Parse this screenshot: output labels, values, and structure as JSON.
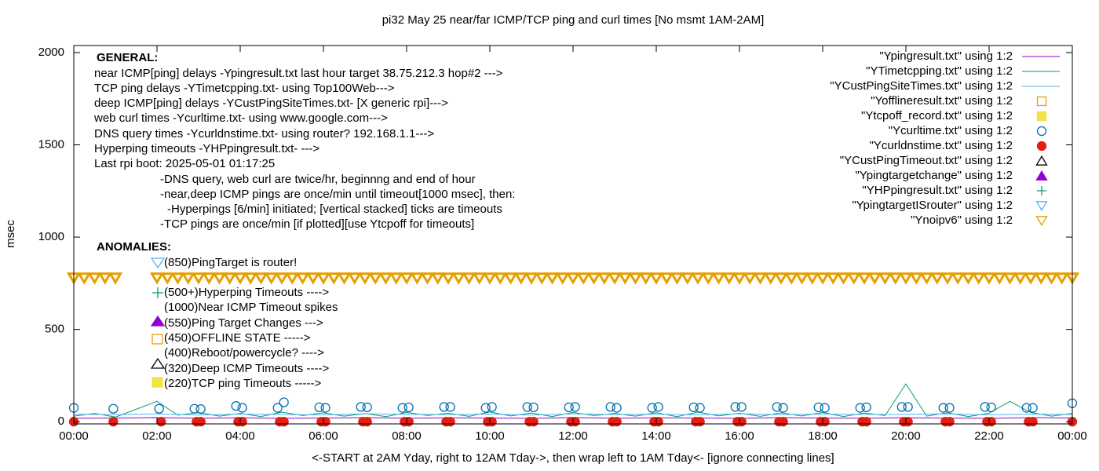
{
  "chart_data": {
    "type": "scatter",
    "title": "pi32 May 25  near/far ICMP/TCP ping and curl times [No msmt 1AM-2AM]",
    "xlabel": "<-START at 2AM Yday, right to 12AM Tday->, then wrap left to 1AM Tday<- [ignore connecting lines]",
    "ylabel": "msec",
    "xlim": [
      0,
      24
    ],
    "ylim": [
      -12,
      2038
    ],
    "yticks": [
      0,
      500,
      1000,
      1500,
      2000
    ],
    "xticks": [
      {
        "value": 0,
        "label": "00:00"
      },
      {
        "value": 2,
        "label": "02:00"
      },
      {
        "value": 4,
        "label": "04:00"
      },
      {
        "value": 6,
        "label": "06:00"
      },
      {
        "value": 8,
        "label": "08:00"
      },
      {
        "value": 10,
        "label": "10:00"
      },
      {
        "value": 12,
        "label": "12:00"
      },
      {
        "value": 14,
        "label": "14:00"
      },
      {
        "value": 16,
        "label": "16:00"
      },
      {
        "value": 18,
        "label": "18:00"
      },
      {
        "value": 20,
        "label": "20:00"
      },
      {
        "value": 22,
        "label": "22:00"
      },
      {
        "value": 24,
        "label": "00:00"
      }
    ],
    "annotations": [
      "GENERAL:",
      "near ICMP[ping] delays -Ypingresult.txt last hour target 38.75.212.3 hop#2 --->",
      "TCP ping delays -YTimetcpping.txt- using Top100Web--->",
      "deep ICMP[ping] delays -YCustPingSiteTimes.txt- [X generic rpi]--->",
      "web curl times -Ycurltime.txt- using www.google.com--->",
      "DNS query times -Ycurldnstime.txt- using router? 192.168.1.1--->",
      "Hyperping timeouts -YHPpingresult.txt- --->",
      "Last rpi boot: 2025-05-01 01:17:25",
      "-DNS query, web curl are twice/hr, beginnng and end of hour",
      "-near,deep ICMP pings are once/min until timeout[1000 msec], then:",
      "-Hyperpings [6/min] initiated; [vertical stacked] ticks are timeouts",
      "-TCP pings are once/min [if plotted][use Ytcpoff for timeouts]",
      "ANOMALIES:",
      "(850)PingTarget is router!",
      "(500+)Hyperping Timeouts ---->",
      "(1000)Near ICMP Timeout spikes",
      "(550)Ping Target Changes --->",
      "(450)OFFLINE STATE ----->",
      "(400)Reboot/powercycle? ---->",
      "(320)Deep ICMP Timeouts ---->",
      "(220)TCP ping Timeouts ----->"
    ],
    "series": [
      {
        "name": "\"Ypingresult.txt\" using 1:2",
        "color": "#9400d3",
        "style": "line",
        "x": [
          0,
          1,
          2,
          3,
          4,
          5,
          6,
          7,
          8,
          9,
          10,
          11,
          12,
          13,
          14,
          15,
          16,
          17,
          18,
          19,
          20,
          21,
          22,
          23,
          24
        ],
        "values": [
          18,
          20,
          22,
          19,
          21,
          18,
          20,
          22,
          19,
          21,
          20,
          18,
          22,
          19,
          21,
          20,
          18,
          22,
          20,
          19,
          21,
          20,
          18,
          22,
          20
        ]
      },
      {
        "name": "\"YTimetcpping.txt\" using 1:2",
        "color": "#009e73",
        "style": "line",
        "x": [
          0,
          0.5,
          1,
          2,
          2.5,
          3,
          3.5,
          4,
          4.5,
          5,
          5.5,
          6,
          6.5,
          7,
          7.5,
          8,
          8.5,
          9,
          9.5,
          10,
          10.5,
          11,
          11.5,
          12,
          12.5,
          13,
          13.5,
          14,
          14.5,
          15,
          15.5,
          16,
          16.5,
          17,
          17.5,
          18,
          18.5,
          19,
          19.5,
          20,
          20.5,
          21,
          21.5,
          22,
          22.5,
          23,
          23.5,
          24
        ],
        "values": [
          30,
          45,
          25,
          110,
          35,
          50,
          30,
          45,
          28,
          52,
          33,
          48,
          30,
          44,
          27,
          50,
          34,
          46,
          29,
          53,
          31,
          47,
          28,
          50,
          33,
          45,
          30,
          49,
          27,
          52,
          32,
          46,
          29,
          48,
          31,
          50,
          28,
          47,
          33,
          205,
          30,
          49,
          28,
          46,
          110,
          50,
          30,
          45
        ]
      },
      {
        "name": "\"YCustPingSiteTimes.txt\" using 1:2",
        "color": "#56b4e9",
        "style": "line",
        "x": [
          0,
          1,
          2,
          3,
          4,
          5,
          6,
          7,
          8,
          9,
          10,
          11,
          12,
          13,
          14,
          15,
          16,
          17,
          18,
          19,
          20,
          21,
          22,
          23,
          24
        ],
        "values": [
          40,
          38,
          42,
          36,
          41,
          39,
          37,
          43,
          40,
          38,
          41,
          36,
          42,
          39,
          40,
          37,
          43,
          38,
          41,
          39,
          40,
          42,
          37,
          41,
          39
        ]
      },
      {
        "name": "\"Yofflineresult.txt\" using 1:2",
        "color": "#e69f00",
        "style": "open-square",
        "x": [],
        "values": []
      },
      {
        "name": "\"Ytcpoff_record.txt\" using 1:2",
        "color": "#f0e442",
        "style": "filled-square",
        "x": [],
        "values": []
      },
      {
        "name": "\"Ycurltime.txt\" using 1:2",
        "color": "#0072b2",
        "style": "open-circle",
        "x": [
          0,
          0.95,
          2.05,
          2.9,
          3.05,
          3.9,
          4.05,
          4.9,
          5.05,
          5.9,
          6.05,
          6.9,
          7.05,
          7.9,
          8.05,
          8.9,
          9.05,
          9.9,
          10.05,
          10.9,
          11.05,
          11.9,
          12.05,
          12.9,
          13.05,
          13.9,
          14.05,
          14.9,
          15.05,
          15.9,
          16.05,
          16.9,
          17.05,
          17.9,
          18.05,
          18.9,
          19.05,
          19.9,
          20.05,
          20.9,
          21.05,
          21.9,
          22.05,
          22.9,
          23.05,
          24
        ],
        "values": [
          75,
          70,
          70,
          70,
          68,
          85,
          75,
          75,
          105,
          78,
          75,
          80,
          78,
          75,
          78,
          80,
          80,
          75,
          80,
          80,
          78,
          78,
          80,
          80,
          75,
          75,
          80,
          78,
          75,
          80,
          80,
          80,
          75,
          78,
          75,
          75,
          78,
          80,
          80,
          75,
          75,
          80,
          78,
          75,
          75,
          100
        ]
      },
      {
        "name": "\"Ycurldnstime.txt\" using 1:2",
        "color": "#e51e10",
        "style": "filled-circle",
        "x": [
          0,
          0.95,
          2.1,
          2.95,
          3.05,
          3.95,
          4.05,
          4.95,
          5.05,
          5.95,
          6.05,
          6.95,
          7.05,
          7.95,
          8.05,
          8.95,
          9.05,
          9.95,
          10.05,
          10.95,
          11.05,
          11.95,
          12.05,
          12.95,
          13.05,
          13.95,
          14.05,
          14.95,
          15.05,
          15.95,
          16.05,
          16.95,
          17.05,
          17.95,
          18.05,
          18.95,
          19.05,
          19.95,
          20.05,
          20.95,
          21.05,
          21.95,
          22.05,
          22.95,
          23.05,
          24
        ],
        "values": [
          0,
          0,
          0,
          0,
          0,
          0,
          0,
          0,
          0,
          0,
          0,
          0,
          0,
          0,
          0,
          0,
          0,
          0,
          0,
          0,
          0,
          0,
          0,
          0,
          0,
          0,
          0,
          0,
          0,
          0,
          0,
          0,
          0,
          0,
          0,
          0,
          0,
          0,
          0,
          0,
          0,
          0,
          0,
          0,
          0,
          0
        ]
      },
      {
        "name": "\"YCustPingTimeout.txt\" using 1:2",
        "color": "#000000",
        "style": "open-triangle",
        "x": [],
        "values": []
      },
      {
        "name": "\"Ypingtargetchange\" using 1:2",
        "color": "#9400d3",
        "style": "filled-triangle",
        "x": [],
        "values": []
      },
      {
        "name": "\"YHPpingresult.txt\" using 1:2",
        "color": "#009e73",
        "style": "plus",
        "x": [],
        "values": []
      },
      {
        "name": "\"YpingtargetISrouter\" using 1:2",
        "color": "#56b4e9",
        "style": "open-down-triangle",
        "x": [],
        "values": []
      },
      {
        "name": "\"Ynoipv6\" using 1:2",
        "color": "#e69f00",
        "style": "open-down-triangle",
        "x": [
          0,
          0.25,
          0.5,
          0.75,
          1,
          2,
          2.25,
          2.5,
          2.75,
          3,
          3.25,
          3.5,
          3.75,
          4,
          4.25,
          4.5,
          4.75,
          5,
          5.25,
          5.5,
          5.75,
          6,
          6.25,
          6.5,
          6.75,
          7,
          7.25,
          7.5,
          7.75,
          8,
          8.25,
          8.5,
          8.75,
          9,
          9.25,
          9.5,
          9.75,
          10,
          10.25,
          10.5,
          10.75,
          11,
          11.25,
          11.5,
          11.75,
          12,
          12.25,
          12.5,
          12.75,
          13,
          13.25,
          13.5,
          13.75,
          14,
          14.25,
          14.5,
          14.75,
          15,
          15.25,
          15.5,
          15.75,
          16,
          16.25,
          16.5,
          16.75,
          17,
          17.25,
          17.5,
          17.75,
          18,
          18.25,
          18.5,
          18.75,
          19,
          19.25,
          19.5,
          19.75,
          20,
          20.25,
          20.5,
          20.75,
          21,
          21.25,
          21.5,
          21.75,
          22,
          22.25,
          22.5,
          22.75,
          23,
          23.25,
          23.5,
          23.75,
          24
        ],
        "values": [
          780,
          780,
          780,
          780,
          780,
          780,
          780,
          780,
          780,
          780,
          780,
          780,
          780,
          780,
          780,
          780,
          780,
          780,
          780,
          780,
          780,
          780,
          780,
          780,
          780,
          780,
          780,
          780,
          780,
          780,
          780,
          780,
          780,
          780,
          780,
          780,
          780,
          780,
          780,
          780,
          780,
          780,
          780,
          780,
          780,
          780,
          780,
          780,
          780,
          780,
          780,
          780,
          780,
          780,
          780,
          780,
          780,
          780,
          780,
          780,
          780,
          780,
          780,
          780,
          780,
          780,
          780,
          780,
          780,
          780,
          780,
          780,
          780,
          780,
          780,
          780,
          780,
          780,
          780,
          780,
          780,
          780,
          780,
          780,
          780,
          780,
          780,
          780,
          780,
          780,
          780,
          780,
          780,
          780
        ]
      }
    ]
  }
}
